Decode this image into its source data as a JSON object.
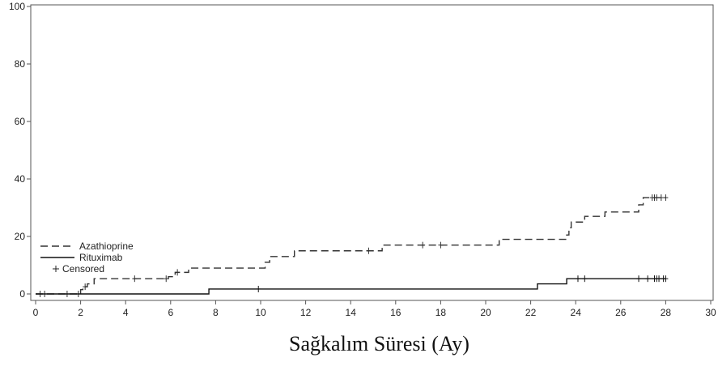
{
  "chart_data": {
    "type": "line",
    "xlabel": "Sağkalım Süresi (Ay)",
    "ylabel": "",
    "title": "",
    "xlim": [
      0,
      30
    ],
    "ylim": [
      0,
      100
    ],
    "xticks": [
      "0",
      "2",
      "4",
      "6",
      "8",
      "10",
      "12",
      "14",
      "16",
      "18",
      "20",
      "22",
      "24",
      "26",
      "28",
      "30"
    ],
    "yticks": [
      "0",
      "20",
      "40",
      "60",
      "80",
      "100"
    ],
    "grid": false,
    "legend_position": "bottom-left",
    "censored_label": "Censored",
    "series": [
      {
        "name": "Azathioprine",
        "style": "dashed",
        "color": "#333333",
        "x": [
          0,
          2.0,
          2.1,
          2.3,
          2.6,
          3.0,
          5.9,
          6.2,
          6.8,
          10.0,
          10.2,
          10.4,
          11.5,
          15.4,
          20.6,
          23.6,
          23.7,
          23.8,
          23.9,
          24.4,
          25.3,
          26.8,
          27.0,
          28.0
        ],
        "y": [
          0,
          1.5,
          2.5,
          3.5,
          5.3,
          5.3,
          6.0,
          7.5,
          9.0,
          9.0,
          11.0,
          13.0,
          15.0,
          17.0,
          19.0,
          20.5,
          23.0,
          25.0,
          25.0,
          27.0,
          28.5,
          31.0,
          33.5,
          33.5
        ],
        "censored": [
          {
            "x": 0.2,
            "y": 0
          },
          {
            "x": 0.4,
            "y": 0
          },
          {
            "x": 1.4,
            "y": 0
          },
          {
            "x": 1.9,
            "y": 0
          },
          {
            "x": 2.2,
            "y": 2.5
          },
          {
            "x": 4.4,
            "y": 5.3
          },
          {
            "x": 5.8,
            "y": 5.3
          },
          {
            "x": 6.3,
            "y": 7.5
          },
          {
            "x": 14.8,
            "y": 15.0
          },
          {
            "x": 17.2,
            "y": 17.0
          },
          {
            "x": 18.0,
            "y": 17.0
          },
          {
            "x": 27.4,
            "y": 33.5
          },
          {
            "x": 27.5,
            "y": 33.5
          },
          {
            "x": 27.6,
            "y": 33.5
          },
          {
            "x": 27.8,
            "y": 33.5
          },
          {
            "x": 28.0,
            "y": 33.5
          }
        ]
      },
      {
        "name": "Rituximab",
        "style": "solid",
        "color": "#111111",
        "x": [
          0,
          7.7,
          22.3,
          23.6,
          28.0
        ],
        "y": [
          0,
          1.7,
          3.5,
          5.3,
          5.3
        ],
        "censored": [
          {
            "x": 9.9,
            "y": 1.7
          },
          {
            "x": 24.1,
            "y": 5.3
          },
          {
            "x": 24.4,
            "y": 5.3
          },
          {
            "x": 26.8,
            "y": 5.3
          },
          {
            "x": 27.2,
            "y": 5.3
          },
          {
            "x": 27.5,
            "y": 5.3
          },
          {
            "x": 27.6,
            "y": 5.3
          },
          {
            "x": 27.7,
            "y": 5.3
          },
          {
            "x": 27.9,
            "y": 5.3
          },
          {
            "x": 28.0,
            "y": 5.3
          }
        ]
      }
    ]
  }
}
